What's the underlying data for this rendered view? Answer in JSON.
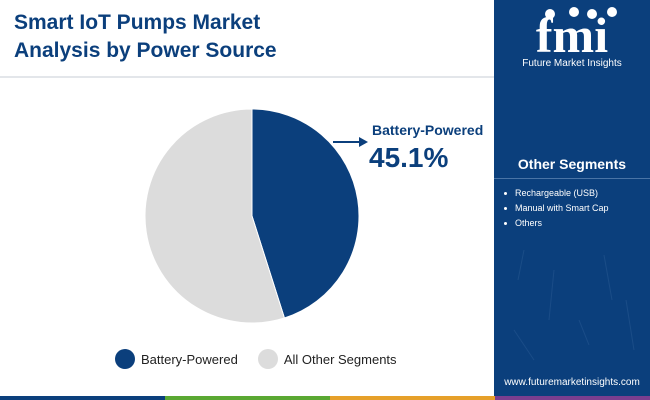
{
  "header": {
    "title_line1": "Smart IoT Pumps Market",
    "title_line2": "Analysis by Power Source"
  },
  "callout": {
    "label": "Battery-Powered",
    "value": "45.1%"
  },
  "chart_data": {
    "type": "pie",
    "title": "Smart IoT Pumps Market Analysis by Power Source",
    "slices": [
      {
        "name": "Battery-Powered",
        "value": 45.1,
        "color": "#0b3f7c"
      },
      {
        "name": "All Other Segments",
        "value": 54.9,
        "color": "#dcdcdc"
      }
    ],
    "legend_position": "bottom",
    "start_angle": "top",
    "direction": "clockwise"
  },
  "legend": {
    "items": [
      {
        "label": "Battery-Powered",
        "color": "#0b3f7c"
      },
      {
        "label": "All Other Segments",
        "color": "#dcdcdc"
      }
    ]
  },
  "sidebar": {
    "logo_text": "fmi",
    "brand": "Future Market Insights",
    "title": "Other Segments",
    "items": [
      "Rechargeable (USB)",
      "Manual with Smart Cap",
      "Others"
    ],
    "website": "www.futuremarketinsights.com"
  },
  "colors": {
    "primary": "#0b3f7c",
    "secondary": "#dcdcdc",
    "bottom_bar": [
      "#0b3f7c",
      "#5aa832",
      "#e6a02a",
      "#7a3e8f"
    ]
  }
}
